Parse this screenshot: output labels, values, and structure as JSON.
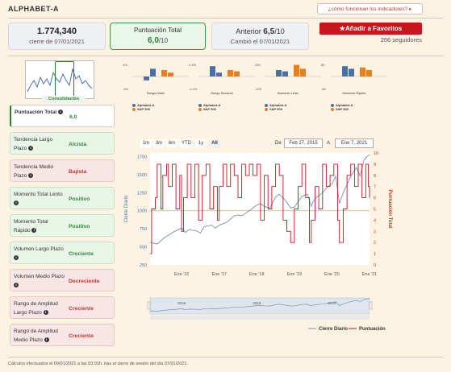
{
  "header": {
    "title": "ALPHABET-A",
    "help_link": "¿cómo funcionan los indicadores? ▸"
  },
  "stats": {
    "price": "1.774,340",
    "price_sub": "cierre de 07/01/2021",
    "score_label": "Puntuación Total",
    "score_value": "6,0",
    "score_max": "/10",
    "prev_label": "Anterior",
    "prev_value": "6,5",
    "prev_max": "/10",
    "prev_sub": "Cambió el 07/01/2021"
  },
  "favorites": {
    "button_label": "Añadir a Favoritos",
    "followers": "256 seguidores"
  },
  "pattern_label": "Consolidación",
  "indicators": [
    {
      "name": "Puntuación Total",
      "value": "6,0",
      "status": "first"
    },
    {
      "name": "Tendencia Largo Plazo",
      "value": "Alcista",
      "status": "g"
    },
    {
      "name": "Tendencia Medio Plazo",
      "value": "Bajista",
      "status": "r"
    },
    {
      "name": "Momento Total Lento",
      "value": "Positivo",
      "status": "g"
    },
    {
      "name": "Momento Total Rápido",
      "value": "Positivo",
      "status": "g"
    },
    {
      "name": "Volumen Largo Plazo",
      "value": "Creciente",
      "status": "g"
    },
    {
      "name": "Volumen Medio Plazo",
      "value": "Decreciente",
      "status": "r"
    },
    {
      "name": "Rango de Amplitud Largo Plazo",
      "value": "Creciente",
      "status": "r"
    },
    {
      "name": "Rango de Amplitud Medio Plazo",
      "value": "Creciente",
      "status": "r"
    }
  ],
  "mini_charts": [
    {
      "caption": "Rango Diario",
      "ytop": "4%",
      "ybot": "-4%",
      "values": [
        -0.3,
        0.6,
        0.5,
        0.3
      ]
    },
    {
      "caption": "Rango Semanal",
      "ytop": "2,4%",
      "ybot": "-2,4%",
      "values": [
        0.8,
        0.3,
        0.5,
        0.4
      ]
    },
    {
      "caption": "Momento Lento",
      "ytop": "200",
      "ybot": "-200",
      "values": [
        0.5,
        0.4,
        0.9,
        0.6
      ]
    },
    {
      "caption": "Momento Rápido",
      "ytop": "80",
      "ybot": "-80",
      "values": [
        0.8,
        0.6,
        0.7,
        0.5
      ]
    }
  ],
  "mini_legend": {
    "a": "Alphabet-A",
    "b": "S&P 500",
    "color_a": "#4a6fa5",
    "color_b": "#e67e22"
  },
  "chart_controls": {
    "ranges": [
      "1m",
      "3m",
      "6m",
      "YTD",
      "1y",
      "All"
    ],
    "selected": "All",
    "from_label": "De",
    "from_date": "Feb 27, 2015",
    "to_label": "A",
    "to_date": "Ene 7, 2021"
  },
  "chart_data": {
    "type": "line",
    "xlabel": "",
    "ylabel": "Cierre Diario",
    "ylabel_right": "Puntuación Total",
    "x_ticks": [
      "Ene '16",
      "Ene '17",
      "Ene '18",
      "Ene '19",
      "Ene '20",
      "Ene '21"
    ],
    "y_ticks_left": [
      250,
      500,
      750,
      1000,
      1250,
      1500,
      1750
    ],
    "y_ticks_right": [
      0,
      1,
      2,
      3,
      4,
      5,
      6,
      7,
      8,
      9,
      10
    ],
    "ylim_left": [
      250,
      1800
    ],
    "ylim_right": [
      0,
      10
    ],
    "reference_line_left": 1000,
    "navigator_labels": [
      "2016",
      "2018",
      "2020"
    ],
    "legend": [
      "Cierre Diario",
      "Puntuación"
    ],
    "legend_placement": "bottom-right",
    "colors": {
      "close": "#7b8fb0",
      "score": "#d0101a",
      "ref": "#f0a070"
    },
    "series": [
      {
        "name": "Cierre Diario",
        "points": [
          [
            2015.16,
            560
          ],
          [
            2015.35,
            540
          ],
          [
            2015.55,
            630
          ],
          [
            2015.65,
            660
          ],
          [
            2015.8,
            710
          ],
          [
            2016.0,
            760
          ],
          [
            2016.1,
            700
          ],
          [
            2016.2,
            740
          ],
          [
            2016.4,
            720
          ],
          [
            2016.5,
            690
          ],
          [
            2016.6,
            780
          ],
          [
            2016.8,
            800
          ],
          [
            2016.9,
            760
          ],
          [
            2017.0,
            800
          ],
          [
            2017.2,
            840
          ],
          [
            2017.4,
            930
          ],
          [
            2017.5,
            940
          ],
          [
            2017.6,
            930
          ],
          [
            2017.8,
            1000
          ],
          [
            2018.0,
            1080
          ],
          [
            2018.1,
            1100
          ],
          [
            2018.2,
            1060
          ],
          [
            2018.35,
            1040
          ],
          [
            2018.5,
            1190
          ],
          [
            2018.6,
            1230
          ],
          [
            2018.75,
            1150
          ],
          [
            2018.9,
            1040
          ],
          [
            2019.0,
            1050
          ],
          [
            2019.2,
            1200
          ],
          [
            2019.35,
            1230
          ],
          [
            2019.45,
            1060
          ],
          [
            2019.5,
            1130
          ],
          [
            2019.6,
            1190
          ],
          [
            2019.75,
            1250
          ],
          [
            2019.9,
            1340
          ],
          [
            2020.0,
            1370
          ],
          [
            2020.1,
            1480
          ],
          [
            2020.2,
            1100
          ],
          [
            2020.3,
            1250
          ],
          [
            2020.45,
            1420
          ],
          [
            2020.55,
            1520
          ],
          [
            2020.65,
            1600
          ],
          [
            2020.75,
            1480
          ],
          [
            2020.85,
            1700
          ],
          [
            2020.95,
            1760
          ],
          [
            2021.0,
            1774
          ]
        ]
      },
      {
        "name": "Puntuación",
        "points": [
          [
            2015.16,
            1
          ],
          [
            2015.2,
            5
          ],
          [
            2015.3,
            6
          ],
          [
            2015.35,
            9
          ],
          [
            2015.45,
            5
          ],
          [
            2015.5,
            8
          ],
          [
            2015.6,
            9
          ],
          [
            2015.65,
            7
          ],
          [
            2015.75,
            9
          ],
          [
            2015.85,
            5
          ],
          [
            2015.95,
            8
          ],
          [
            2016.0,
            3
          ],
          [
            2016.05,
            6
          ],
          [
            2016.15,
            9
          ],
          [
            2016.25,
            6
          ],
          [
            2016.35,
            9
          ],
          [
            2016.45,
            4
          ],
          [
            2016.55,
            8
          ],
          [
            2016.65,
            9
          ],
          [
            2016.75,
            5
          ],
          [
            2016.85,
            7
          ],
          [
            2016.95,
            4
          ],
          [
            2017.0,
            7
          ],
          [
            2017.1,
            9
          ],
          [
            2017.2,
            7
          ],
          [
            2017.3,
            9
          ],
          [
            2017.4,
            8
          ],
          [
            2017.5,
            6
          ],
          [
            2017.6,
            9
          ],
          [
            2017.7,
            8
          ],
          [
            2017.8,
            9
          ],
          [
            2017.9,
            8
          ],
          [
            2018.0,
            9
          ],
          [
            2018.1,
            4
          ],
          [
            2018.2,
            8
          ],
          [
            2018.3,
            5
          ],
          [
            2018.4,
            7
          ],
          [
            2018.5,
            9
          ],
          [
            2018.6,
            8
          ],
          [
            2018.7,
            4
          ],
          [
            2018.8,
            3
          ],
          [
            2018.9,
            2
          ],
          [
            2019.0,
            5
          ],
          [
            2019.1,
            7
          ],
          [
            2019.2,
            9
          ],
          [
            2019.3,
            6
          ],
          [
            2019.4,
            2
          ],
          [
            2019.45,
            4
          ],
          [
            2019.55,
            7
          ],
          [
            2019.65,
            5
          ],
          [
            2019.75,
            9
          ],
          [
            2019.85,
            7
          ],
          [
            2019.95,
            8
          ],
          [
            2020.05,
            9
          ],
          [
            2020.15,
            4
          ],
          [
            2020.2,
            2
          ],
          [
            2020.3,
            5
          ],
          [
            2020.4,
            8
          ],
          [
            2020.5,
            9
          ],
          [
            2020.6,
            7
          ],
          [
            2020.7,
            9
          ],
          [
            2020.8,
            6
          ],
          [
            2020.9,
            9
          ],
          [
            2020.97,
            7
          ],
          [
            2021.0,
            6
          ]
        ]
      }
    ]
  },
  "footnote": "Cálculos efectuados el 09/01/2021 a las 03:01h. tras el cierre de sesión del día 07/01/2021."
}
